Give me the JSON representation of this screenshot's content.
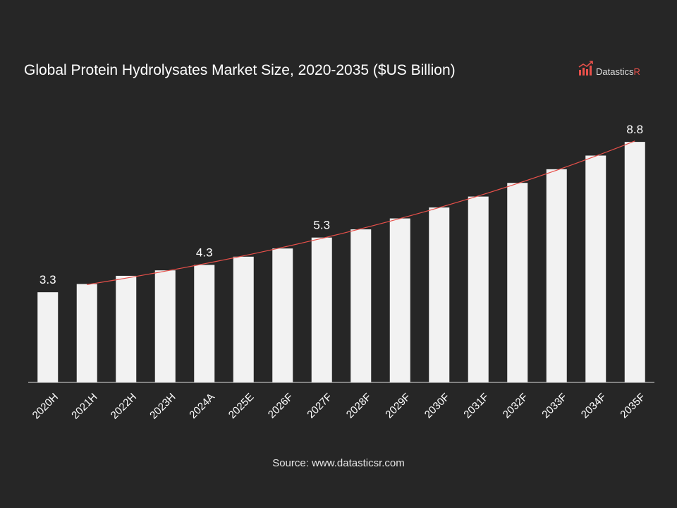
{
  "chart_data": {
    "type": "bar",
    "title": "Global Protein Hydrolysates Market Size, 2020-2035 ($US Billion)",
    "categories": [
      "2020H",
      "2021H",
      "2022H",
      "2023H",
      "2024A",
      "2025E",
      "2026F",
      "2027F",
      "2028F",
      "2029F",
      "2030F",
      "2031F",
      "2032F",
      "2033F",
      "2034F",
      "2035F"
    ],
    "values": [
      3.3,
      3.6,
      3.9,
      4.1,
      4.3,
      4.6,
      4.9,
      5.3,
      5.6,
      6.0,
      6.4,
      6.8,
      7.3,
      7.8,
      8.3,
      8.8
    ],
    "data_labels": {
      "2020H": "3.3",
      "2024A": "4.3",
      "2027F": "5.3",
      "2035F": "8.8"
    },
    "trendline": true,
    "ylim": [
      0,
      9.5
    ],
    "xlabel": "",
    "ylabel": "",
    "grid": false,
    "legend": "none",
    "colors": {
      "bar": "#f2f2f2",
      "trend": "#e8504a",
      "axis": "#d9d9d9",
      "background": "#262626"
    }
  },
  "source": "Source: www.datasticsr.com",
  "logo": {
    "text_main": "Datastics",
    "text_accent": "R",
    "icon": "bar-chart-logo-icon"
  }
}
